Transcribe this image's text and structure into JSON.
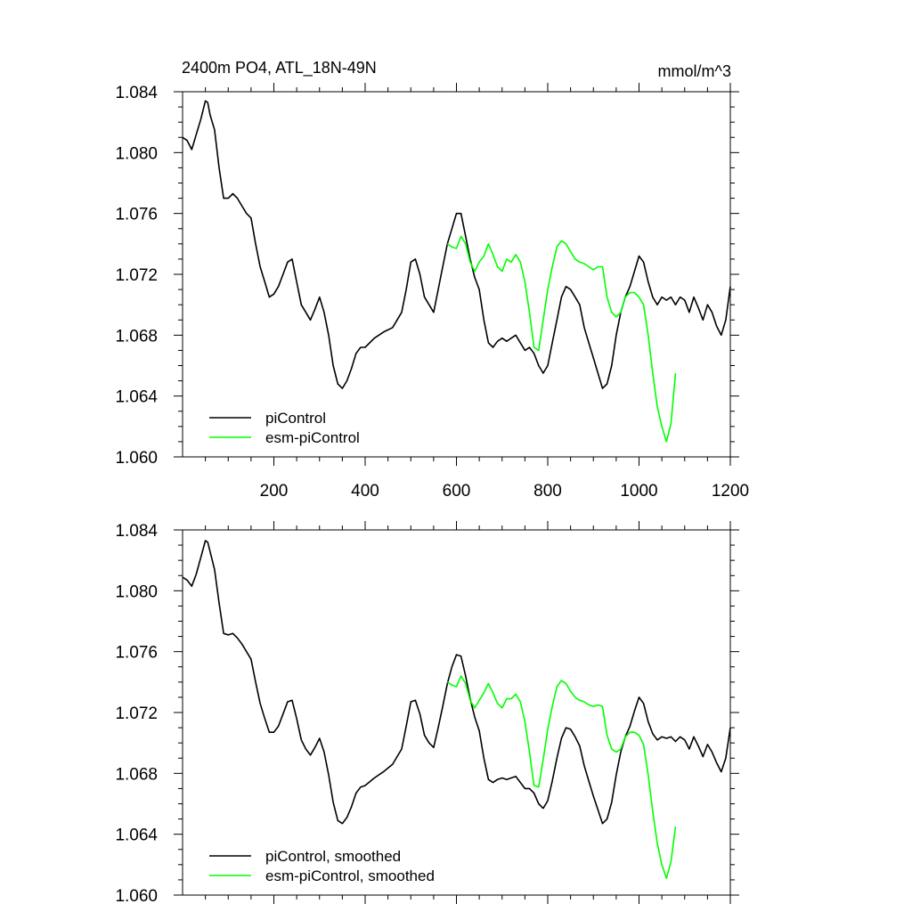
{
  "colors": {
    "piControl": "#000000",
    "esm": "#00ff00",
    "axis": "#000000"
  },
  "chart_data": [
    {
      "type": "line",
      "title": "2400m PO4, ATL_18N-49N",
      "units": "mmol/m^3",
      "xlabel": "",
      "ylabel": "",
      "xlim": [
        0,
        1200
      ],
      "ylim": [
        1.06,
        1.084
      ],
      "xticks": [
        200,
        400,
        600,
        800,
        1000,
        1200
      ],
      "yticks": [
        1.06,
        1.064,
        1.068,
        1.072,
        1.076,
        1.08,
        1.084
      ],
      "ytick_labels": [
        "1.060",
        "1.064",
        "1.068",
        "1.072",
        "1.076",
        "1.080",
        "1.084"
      ],
      "xtick_labels": [
        "200",
        "400",
        "600",
        "800",
        "1000",
        "1200"
      ],
      "legend": [
        "piControl",
        "esm-piControl"
      ],
      "legend_position": "bottom-left",
      "series": [
        {
          "name": "piControl",
          "x": [
            0,
            10,
            20,
            30,
            40,
            50,
            55,
            60,
            70,
            80,
            90,
            100,
            110,
            120,
            130,
            140,
            150,
            160,
            170,
            180,
            190,
            200,
            210,
            220,
            230,
            240,
            250,
            260,
            270,
            280,
            290,
            300,
            310,
            320,
            330,
            340,
            350,
            360,
            370,
            380,
            390,
            400,
            420,
            440,
            460,
            480,
            490,
            500,
            510,
            520,
            530,
            540,
            550,
            560,
            570,
            580,
            590,
            600,
            610,
            620,
            630,
            640,
            650,
            660,
            670,
            680,
            690,
            700,
            710,
            720,
            730,
            740,
            750,
            760,
            770,
            780,
            790,
            800,
            810,
            820,
            830,
            840,
            850,
            860,
            870,
            880,
            890,
            900,
            910,
            920,
            930,
            940,
            950,
            960,
            970,
            980,
            990,
            1000,
            1010,
            1020,
            1030,
            1040,
            1050,
            1060,
            1070,
            1080,
            1090,
            1100,
            1110,
            1120,
            1130,
            1140,
            1150,
            1160,
            1170,
            1180,
            1190,
            1200
          ],
          "values": [
            1.081,
            1.0808,
            1.0802,
            1.0812,
            1.0822,
            1.0834,
            1.0833,
            1.0825,
            1.0815,
            1.079,
            1.077,
            1.077,
            1.0773,
            1.077,
            1.0765,
            1.076,
            1.0757,
            1.074,
            1.0725,
            1.0715,
            1.0705,
            1.0707,
            1.0712,
            1.072,
            1.0728,
            1.073,
            1.0715,
            1.07,
            1.0695,
            1.069,
            1.0697,
            1.0705,
            1.0695,
            1.068,
            1.066,
            1.0648,
            1.0645,
            1.065,
            1.0658,
            1.0668,
            1.0672,
            1.0672,
            1.0678,
            1.0682,
            1.0685,
            1.0695,
            1.071,
            1.0728,
            1.073,
            1.072,
            1.0705,
            1.07,
            1.0695,
            1.071,
            1.0725,
            1.074,
            1.075,
            1.076,
            1.076,
            1.0745,
            1.073,
            1.0718,
            1.071,
            1.069,
            1.0675,
            1.0672,
            1.0676,
            1.0678,
            1.0676,
            1.0678,
            1.068,
            1.0675,
            1.067,
            1.0672,
            1.0668,
            1.066,
            1.0655,
            1.066,
            1.0675,
            1.069,
            1.0705,
            1.0712,
            1.071,
            1.0705,
            1.07,
            1.0685,
            1.0675,
            1.0665,
            1.0655,
            1.0645,
            1.0648,
            1.066,
            1.068,
            1.0695,
            1.0705,
            1.0712,
            1.0722,
            1.0732,
            1.0728,
            1.0715,
            1.0705,
            1.07,
            1.0705,
            1.0703,
            1.0705,
            1.07,
            1.0705,
            1.0703,
            1.0695,
            1.0705,
            1.0698,
            1.069,
            1.07,
            1.0695,
            1.0686,
            1.068,
            1.069,
            1.0712
          ]
        },
        {
          "name": "esm-piControl",
          "x": [
            580,
            590,
            600,
            610,
            620,
            630,
            640,
            650,
            660,
            670,
            680,
            690,
            700,
            710,
            720,
            730,
            740,
            750,
            760,
            770,
            780,
            790,
            800,
            810,
            820,
            830,
            840,
            850,
            860,
            870,
            880,
            890,
            900,
            910,
            920,
            930,
            940,
            950,
            960,
            970,
            980,
            990,
            1000,
            1010,
            1020,
            1030,
            1040,
            1050,
            1060,
            1070,
            1080
          ],
          "values": [
            1.074,
            1.0738,
            1.0737,
            1.0745,
            1.074,
            1.0728,
            1.0722,
            1.0728,
            1.0732,
            1.074,
            1.0733,
            1.0725,
            1.0722,
            1.073,
            1.0728,
            1.0733,
            1.0728,
            1.0715,
            1.0695,
            1.0672,
            1.067,
            1.069,
            1.071,
            1.0725,
            1.0738,
            1.0742,
            1.074,
            1.0735,
            1.073,
            1.0728,
            1.0727,
            1.0725,
            1.0723,
            1.0725,
            1.0725,
            1.0705,
            1.0695,
            1.0692,
            1.0695,
            1.0705,
            1.0708,
            1.0708,
            1.0705,
            1.07,
            1.068,
            1.0655,
            1.0633,
            1.062,
            1.061,
            1.0622,
            1.0655
          ]
        }
      ]
    },
    {
      "type": "line",
      "title": "",
      "xlim": [
        0,
        1200
      ],
      "ylim": [
        1.06,
        1.084
      ],
      "yticks": [
        1.06,
        1.064,
        1.068,
        1.072,
        1.076,
        1.08,
        1.084
      ],
      "ytick_labels": [
        "1.060",
        "1.064",
        "1.068",
        "1.072",
        "1.076",
        "1.080",
        "1.084"
      ],
      "legend": [
        "piControl, smoothed",
        "esm-piControl, smoothed"
      ],
      "legend_position": "bottom-left",
      "series": [
        {
          "name": "piControl, smoothed",
          "x": [
            0,
            10,
            20,
            30,
            40,
            50,
            55,
            60,
            70,
            80,
            90,
            100,
            110,
            120,
            130,
            140,
            150,
            160,
            170,
            180,
            190,
            200,
            210,
            220,
            230,
            240,
            250,
            260,
            270,
            280,
            290,
            300,
            310,
            320,
            330,
            340,
            350,
            360,
            370,
            380,
            390,
            400,
            420,
            440,
            460,
            480,
            490,
            500,
            510,
            520,
            530,
            540,
            550,
            560,
            570,
            580,
            590,
            600,
            610,
            620,
            630,
            640,
            650,
            660,
            670,
            680,
            690,
            700,
            710,
            720,
            730,
            740,
            750,
            760,
            770,
            780,
            790,
            800,
            810,
            820,
            830,
            840,
            850,
            860,
            870,
            880,
            890,
            900,
            910,
            920,
            930,
            940,
            950,
            960,
            970,
            980,
            990,
            1000,
            1010,
            1020,
            1030,
            1040,
            1050,
            1060,
            1070,
            1080,
            1090,
            1100,
            1110,
            1120,
            1130,
            1140,
            1150,
            1160,
            1170,
            1180,
            1190,
            1200
          ],
          "values": [
            1.0809,
            1.0807,
            1.0803,
            1.0811,
            1.0822,
            1.0833,
            1.0832,
            1.0826,
            1.0814,
            1.0792,
            1.0772,
            1.0771,
            1.0772,
            1.0769,
            1.0765,
            1.076,
            1.0755,
            1.074,
            1.0726,
            1.0716,
            1.0707,
            1.0707,
            1.0711,
            1.0719,
            1.0727,
            1.0728,
            1.0716,
            1.0702,
            1.0696,
            1.0692,
            1.0697,
            1.0703,
            1.0694,
            1.0679,
            1.0661,
            1.0649,
            1.0647,
            1.0651,
            1.0658,
            1.0667,
            1.0671,
            1.0672,
            1.0677,
            1.0681,
            1.0686,
            1.0696,
            1.0711,
            1.0727,
            1.0728,
            1.0719,
            1.0705,
            1.07,
            1.0697,
            1.071,
            1.0724,
            1.0739,
            1.075,
            1.0758,
            1.0757,
            1.0744,
            1.0729,
            1.0717,
            1.0708,
            1.069,
            1.0676,
            1.0674,
            1.0676,
            1.0677,
            1.0676,
            1.0677,
            1.0678,
            1.0674,
            1.067,
            1.067,
            1.0667,
            1.066,
            1.0657,
            1.0662,
            1.0675,
            1.069,
            1.0703,
            1.071,
            1.0709,
            1.0704,
            1.0698,
            1.0685,
            1.0675,
            1.0665,
            1.0656,
            1.0647,
            1.065,
            1.0661,
            1.0679,
            1.0694,
            1.0704,
            1.0711,
            1.0721,
            1.073,
            1.0726,
            1.0714,
            1.0706,
            1.0702,
            1.0704,
            1.0703,
            1.0704,
            1.0701,
            1.0704,
            1.0702,
            1.0696,
            1.0704,
            1.0698,
            1.0691,
            1.0699,
            1.0694,
            1.0687,
            1.0681,
            1.069,
            1.071
          ]
        },
        {
          "name": "esm-piControl, smoothed",
          "x": [
            580,
            590,
            600,
            610,
            620,
            630,
            640,
            650,
            660,
            670,
            680,
            690,
            700,
            710,
            720,
            730,
            740,
            750,
            760,
            770,
            780,
            790,
            800,
            810,
            820,
            830,
            840,
            850,
            860,
            870,
            880,
            890,
            900,
            910,
            920,
            930,
            940,
            950,
            960,
            970,
            980,
            990,
            1000,
            1010,
            1020,
            1030,
            1040,
            1050,
            1060,
            1070,
            1080
          ],
          "values": [
            1.074,
            1.0738,
            1.0737,
            1.0744,
            1.0739,
            1.0728,
            1.0723,
            1.0728,
            1.0733,
            1.0739,
            1.0733,
            1.0726,
            1.0723,
            1.0729,
            1.0729,
            1.0732,
            1.0727,
            1.0714,
            1.0694,
            1.0672,
            1.0671,
            1.0689,
            1.0709,
            1.0724,
            1.0737,
            1.0741,
            1.0739,
            1.0734,
            1.073,
            1.0728,
            1.0727,
            1.0725,
            1.0724,
            1.0725,
            1.0724,
            1.0705,
            1.0696,
            1.0694,
            1.0696,
            1.0704,
            1.0707,
            1.0707,
            1.0705,
            1.0699,
            1.0679,
            1.0655,
            1.0634,
            1.062,
            1.0611,
            1.0622,
            1.0645
          ]
        }
      ]
    }
  ]
}
